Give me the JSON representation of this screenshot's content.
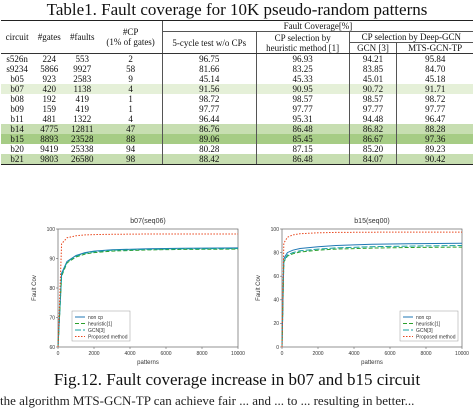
{
  "table": {
    "caption": "Table1. Fault coverage for 10K pseudo-random patterns",
    "headers": {
      "circuit": "circuit",
      "gates": "#gates",
      "faults": "#faults",
      "cp_line1": "#CP",
      "cp_line2": "(1% of gates)",
      "fault_coverage": "Fault Coverage[%]",
      "five_cycle": "5-cycle test w/o CPs",
      "heuristic_line1": "CP selection by",
      "heuristic_line2": "heuristic method [1]",
      "deep_gcn": "CP selection by Deep-GCN",
      "gcn": "GCN [3]",
      "mts": "MTS-GCN-TP"
    },
    "rows": [
      {
        "circuit": "s526n",
        "gates": "224",
        "faults": "553",
        "cp": "2",
        "five": "96.75",
        "heur": "96.93",
        "gcn": "94.21",
        "mts": "95.84",
        "hl": ""
      },
      {
        "circuit": "s9234",
        "gates": "5866",
        "faults": "9927",
        "cp": "58",
        "five": "81.66",
        "heur": "83.25",
        "gcn": "83.85",
        "mts": "84.70",
        "hl": ""
      },
      {
        "circuit": "b05",
        "gates": "923",
        "faults": "2583",
        "cp": "9",
        "five": "45.14",
        "heur": "45.33",
        "gcn": "45.01",
        "mts": "45.18",
        "hl": ""
      },
      {
        "circuit": "b07",
        "gates": "420",
        "faults": "1138",
        "cp": "4",
        "five": "91.56",
        "heur": "90.95",
        "gcn": "90.72",
        "mts": "91.71",
        "hl": "hl-light"
      },
      {
        "circuit": "b08",
        "gates": "192",
        "faults": "419",
        "cp": "1",
        "five": "98.72",
        "heur": "98.57",
        "gcn": "98.57",
        "mts": "98.72",
        "hl": ""
      },
      {
        "circuit": "b09",
        "gates": "159",
        "faults": "419",
        "cp": "1",
        "five": "97.77",
        "heur": "97.77",
        "gcn": "97.77",
        "mts": "97.77",
        "hl": ""
      },
      {
        "circuit": "b11",
        "gates": "481",
        "faults": "1322",
        "cp": "4",
        "five": "96.44",
        "heur": "95.31",
        "gcn": "94.48",
        "mts": "96.47",
        "hl": ""
      },
      {
        "circuit": "b14",
        "gates": "4775",
        "faults": "12811",
        "cp": "47",
        "five": "86.76",
        "heur": "86.48",
        "gcn": "86.82",
        "mts": "88.28",
        "hl": "hl-mid"
      },
      {
        "circuit": "b15",
        "gates": "8893",
        "faults": "23528",
        "cp": "88",
        "five": "89.06",
        "heur": "85.45",
        "gcn": "86.67",
        "mts": "97.36",
        "hl": "hl-dark"
      },
      {
        "circuit": "b20",
        "gates": "9419",
        "faults": "25338",
        "cp": "94",
        "five": "80.28",
        "heur": "87.15",
        "gcn": "85.20",
        "mts": "89.23",
        "hl": ""
      },
      {
        "circuit": "b21",
        "gates": "9803",
        "faults": "26580",
        "cp": "98",
        "five": "88.42",
        "heur": "86.48",
        "gcn": "84.07",
        "mts": "90.42",
        "hl": "hl-mid"
      }
    ]
  },
  "chart_data": [
    {
      "type": "line",
      "title": "b07(seq06)",
      "xlabel": "patterns",
      "ylabel": "Fault Cov",
      "xlim": [
        0,
        10000
      ],
      "ylim": [
        60,
        100
      ],
      "xticks": [
        "0",
        "2000",
        "4000",
        "6000",
        "8000",
        "10000"
      ],
      "yticks": [
        "60",
        "70",
        "80",
        "90",
        "100"
      ],
      "legend_position": "bottom-left",
      "series": [
        {
          "name": "non cp",
          "color": "#1f77b4",
          "dash": "",
          "x": [
            0,
            200,
            500,
            1000,
            1500,
            2000,
            3000,
            5000,
            7000,
            10000
          ],
          "y": [
            60,
            85,
            89,
            91,
            92,
            92.5,
            93,
            93.3,
            93.5,
            93.6
          ]
        },
        {
          "name": "heuristic[1]",
          "color": "#2ca02c",
          "dash": "4,2",
          "x": [
            0,
            200,
            500,
            1000,
            1500,
            2000,
            3000,
            5000,
            7000,
            10000
          ],
          "y": [
            60,
            84,
            88.5,
            90.5,
            91.5,
            92,
            92.5,
            92.9,
            93.1,
            93.2
          ]
        },
        {
          "name": "GCN[3]",
          "color": "#17a0a0",
          "dash": "6,2",
          "x": [
            0,
            200,
            500,
            1000,
            1500,
            2000,
            3000,
            5000,
            7000,
            10000
          ],
          "y": [
            60,
            84.5,
            88.8,
            90.8,
            91.8,
            92.3,
            92.8,
            93.1,
            93.3,
            93.4
          ]
        },
        {
          "name": "Proposed method",
          "color": "#e8451b",
          "dash": "1.5,1.5",
          "x": [
            0,
            200,
            500,
            1000,
            1500,
            2000,
            3000,
            5000,
            7000,
            10000
          ],
          "y": [
            60,
            95,
            97,
            97.7,
            98,
            98.1,
            98.2,
            98.3,
            98.3,
            98.3
          ]
        }
      ]
    },
    {
      "type": "line",
      "title": "b15(seq00)",
      "xlabel": "patterns",
      "ylabel": "Fault Cov",
      "xlim": [
        0,
        10000
      ],
      "ylim": [
        0,
        100
      ],
      "xticks": [
        "0",
        "2000",
        "4000",
        "6000",
        "8000",
        "10000"
      ],
      "yticks": [
        "0",
        "20",
        "40",
        "60",
        "80",
        "100"
      ],
      "legend_position": "bottom-right",
      "series": [
        {
          "name": "non cp",
          "color": "#1f77b4",
          "dash": "",
          "x": [
            0,
            100,
            300,
            600,
            1000,
            2000,
            3000,
            5000,
            7000,
            10000
          ],
          "y": [
            0,
            75,
            80,
            82,
            83.5,
            85,
            86,
            87,
            87.5,
            88
          ]
        },
        {
          "name": "heuristic[1]",
          "color": "#2ca02c",
          "dash": "4,2",
          "x": [
            0,
            100,
            300,
            600,
            1000,
            2000,
            3000,
            5000,
            7000,
            10000
          ],
          "y": [
            0,
            72,
            77,
            79,
            80.5,
            82,
            83,
            83.8,
            84.3,
            84.7
          ]
        },
        {
          "name": "GCN[3]",
          "color": "#17a0a0",
          "dash": "6,2",
          "x": [
            0,
            100,
            300,
            600,
            1000,
            2000,
            3000,
            5000,
            7000,
            10000
          ],
          "y": [
            0,
            73,
            78,
            80,
            81.5,
            83,
            84,
            85,
            85.5,
            86
          ]
        },
        {
          "name": "Proposed method",
          "color": "#e8451b",
          "dash": "1.5,1.5",
          "x": [
            0,
            100,
            300,
            600,
            1000,
            2000,
            3000,
            5000,
            7000,
            10000
          ],
          "y": [
            0,
            88,
            93,
            95,
            96,
            96.8,
            97.1,
            97.3,
            97.4,
            97.4
          ]
        }
      ]
    }
  ],
  "figure": {
    "caption": "Fig.12. Fault coverage increase in b07 and b15 circuit",
    "cut_text": "the algorithm MTS-GCN-TP can achieve fair ... and ... to ... resulting in better..."
  }
}
